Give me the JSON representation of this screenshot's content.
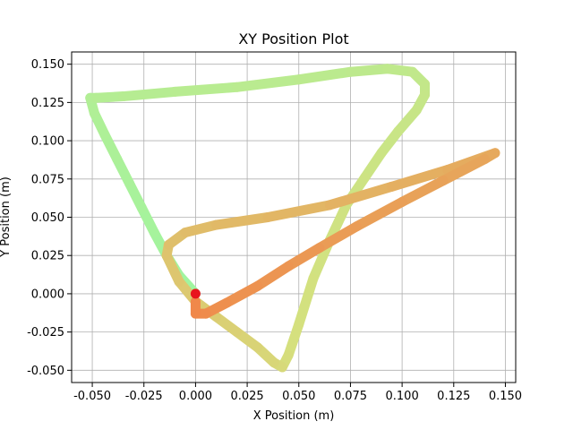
{
  "chart_data": {
    "type": "scatter",
    "title": "XY Position Plot",
    "xlabel": "X Position (m)",
    "ylabel": "Y Position (m)",
    "xlim": [
      -0.06,
      0.155
    ],
    "ylim": [
      -0.058,
      0.158
    ],
    "grid": true,
    "x_ticks": [
      "-0.050",
      "-0.025",
      "0.000",
      "0.025",
      "0.050",
      "0.075",
      "0.100",
      "0.125",
      "0.150"
    ],
    "x_tick_values": [
      -0.05,
      -0.025,
      0.0,
      0.025,
      0.05,
      0.075,
      0.1,
      0.125,
      0.15
    ],
    "y_ticks": [
      "0.150",
      "0.125",
      "0.100",
      "0.075",
      "0.050",
      "0.025",
      "0.000",
      "-0.025",
      "-0.050"
    ],
    "y_tick_values": [
      0.15,
      0.125,
      0.1,
      0.075,
      0.05,
      0.025,
      0.0,
      -0.025,
      -0.05
    ],
    "trajectory": {
      "x": [
        0.0,
        -0.008,
        -0.014,
        -0.02,
        -0.026,
        -0.032,
        -0.038,
        -0.044,
        -0.049,
        -0.051,
        -0.048,
        -0.035,
        -0.01,
        0.02,
        0.05,
        0.075,
        0.093,
        0.105,
        0.111,
        0.111,
        0.107,
        0.098,
        0.09,
        0.082,
        0.073,
        0.065,
        0.057,
        0.05,
        0.045,
        0.042,
        0.038,
        0.03,
        0.02,
        0.01,
        0.0,
        -0.008,
        -0.014,
        -0.013,
        -0.005,
        0.01,
        0.035,
        0.065,
        0.095,
        0.122,
        0.145,
        0.14,
        0.12,
        0.1,
        0.078,
        0.06,
        0.045,
        0.03,
        0.015,
        0.005,
        0.0,
        0.0
      ],
      "y": [
        0.0,
        0.012,
        0.025,
        0.04,
        0.056,
        0.072,
        0.088,
        0.104,
        0.118,
        0.128,
        0.128,
        0.129,
        0.132,
        0.135,
        0.14,
        0.145,
        0.147,
        0.145,
        0.137,
        0.13,
        0.12,
        0.106,
        0.092,
        0.076,
        0.058,
        0.035,
        0.01,
        -0.02,
        -0.04,
        -0.048,
        -0.045,
        -0.035,
        -0.025,
        -0.015,
        -0.005,
        0.008,
        0.025,
        0.032,
        0.04,
        0.045,
        0.05,
        0.058,
        0.07,
        0.081,
        0.092,
        0.088,
        0.074,
        0.06,
        0.044,
        0.03,
        0.018,
        0.005,
        -0.006,
        -0.013,
        -0.013,
        -0.005
      ],
      "color_start": "#a0f5a0",
      "color_mid": "#d5e07e",
      "color_end": "#f0884a"
    },
    "start_marker": {
      "x": 0.0,
      "y": 0.0,
      "color": "#e8141e"
    },
    "grid_color": "#b0b0b0"
  }
}
